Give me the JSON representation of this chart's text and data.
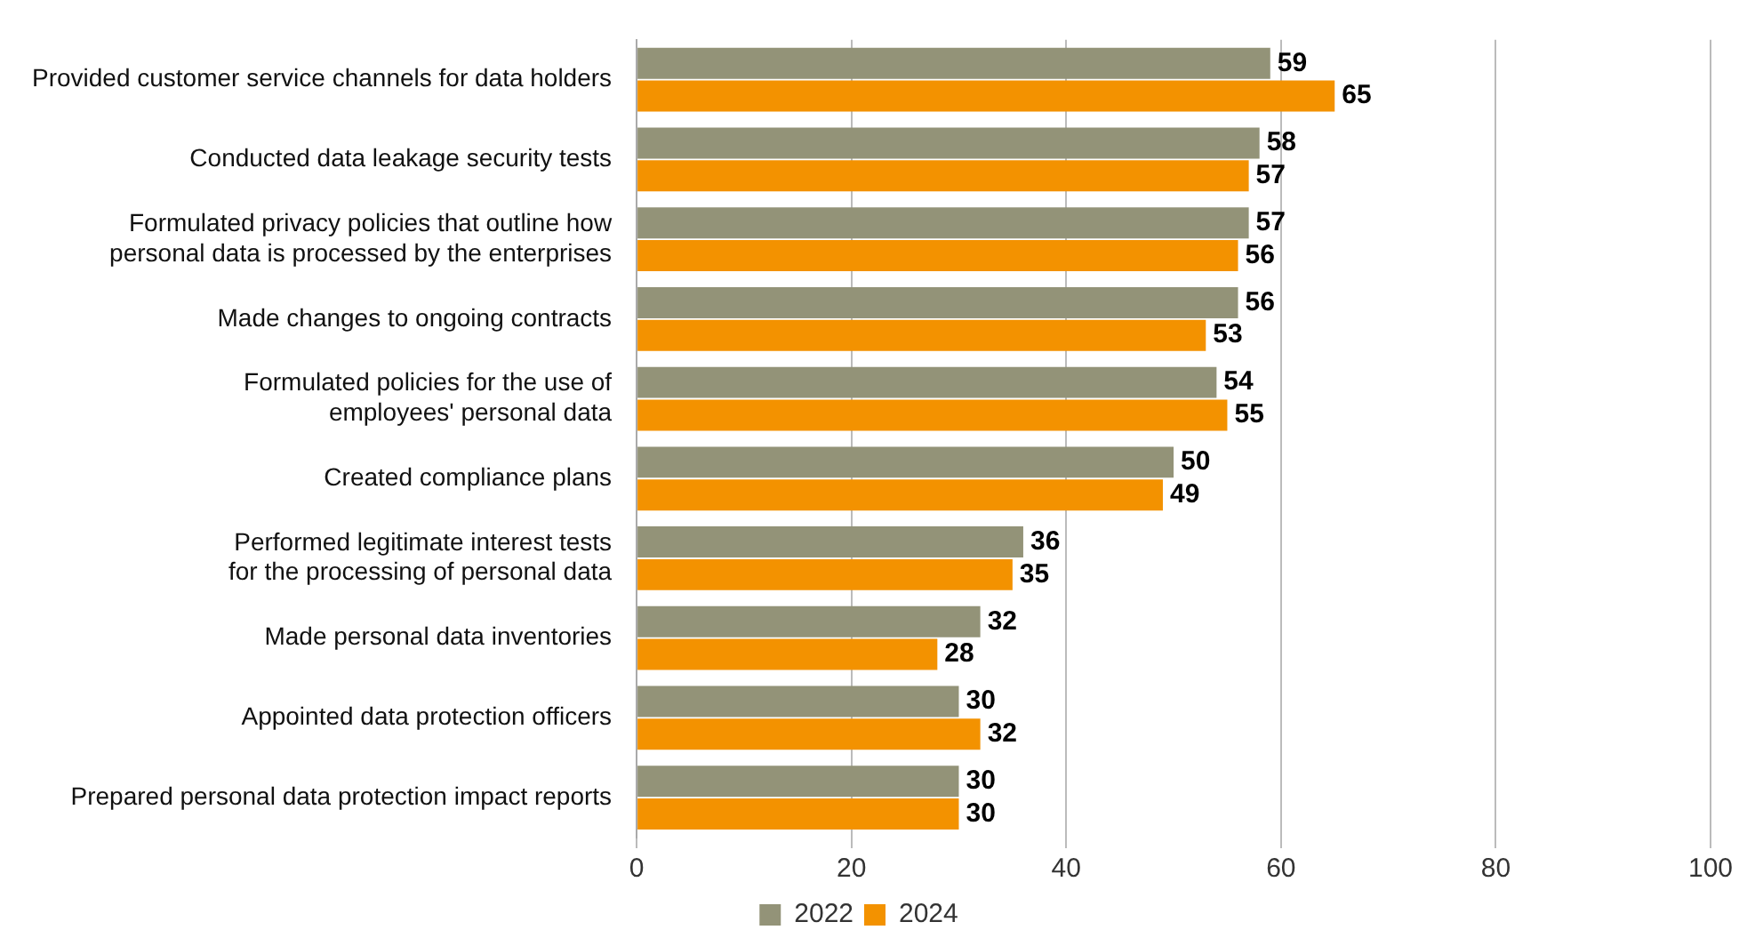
{
  "chart_data": {
    "type": "bar",
    "orientation": "horizontal",
    "categories": [
      "Provided customer service channels for data holders",
      "Conducted data leakage security tests",
      "Formulated privacy policies that outline how\npersonal data is processed by the enterprises",
      "Made changes to ongoing contracts",
      "Formulated policies for the use of\nemployees' personal data",
      "Created compliance plans",
      "Performed legitimate interest tests\nfor the processing of personal data",
      "Made personal data inventories",
      "Appointed data protection officers",
      "Prepared personal data protection impact reports"
    ],
    "series": [
      {
        "name": "2022",
        "color": "#939378",
        "values": [
          59,
          58,
          57,
          56,
          54,
          50,
          36,
          32,
          30,
          30
        ]
      },
      {
        "name": "2024",
        "color": "#f39200",
        "values": [
          65,
          57,
          56,
          53,
          55,
          49,
          35,
          28,
          32,
          30
        ]
      }
    ],
    "xlim": [
      0,
      100
    ],
    "xticks": [
      0,
      20,
      40,
      60,
      80,
      100
    ],
    "grid": "x",
    "legend": "bottom",
    "data_labels": true
  }
}
